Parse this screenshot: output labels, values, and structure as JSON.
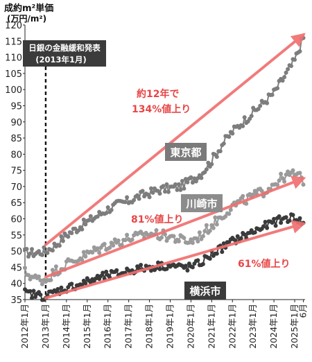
{
  "chart_data": {
    "type": "line",
    "ylabel_line1": "成約m²単価",
    "ylabel_line2": "(万円/m²)",
    "ylim": [
      35,
      120
    ],
    "yticks": [
      35,
      40,
      45,
      50,
      55,
      60,
      65,
      70,
      75,
      80,
      85,
      90,
      95,
      100,
      105,
      110,
      115,
      120
    ],
    "xlim": [
      2012.0,
      2025.5
    ],
    "xticks": [
      {
        "x": 2012,
        "label": "2012年1月"
      },
      {
        "x": 2013,
        "label": "2013年1月"
      },
      {
        "x": 2014,
        "label": "2014年1月"
      },
      {
        "x": 2015,
        "label": "2015年1月"
      },
      {
        "x": 2016,
        "label": "2016年1月"
      },
      {
        "x": 2017,
        "label": "2017年1月"
      },
      {
        "x": 2018,
        "label": "2018年1月"
      },
      {
        "x": 2019,
        "label": "2019年1月"
      },
      {
        "x": 2020,
        "label": "2020年1月"
      },
      {
        "x": 2021,
        "label": "2021年1月"
      },
      {
        "x": 2022,
        "label": "2022年1月"
      },
      {
        "x": 2023,
        "label": "2023年1月"
      },
      {
        "x": 2024,
        "label": "2024年1月"
      },
      {
        "x": 2025,
        "label": "2025年1月"
      },
      {
        "x": 2025.42,
        "label": "6月"
      }
    ],
    "grid": false,
    "series": [
      {
        "name": "東京都",
        "label_box": true,
        "color": "#7d7d7d",
        "points": [
          [
            2012.0,
            49.5
          ],
          [
            2012.5,
            49.5
          ],
          [
            2013.0,
            50.0
          ],
          [
            2013.5,
            52.0
          ],
          [
            2014.0,
            55.0
          ],
          [
            2014.5,
            57.0
          ],
          [
            2015.0,
            59.0
          ],
          [
            2015.5,
            61.0
          ],
          [
            2016.0,
            63.0
          ],
          [
            2016.5,
            64.5
          ],
          [
            2017.0,
            65.5
          ],
          [
            2017.5,
            67.0
          ],
          [
            2018.0,
            68.0
          ],
          [
            2018.5,
            69.0
          ],
          [
            2019.0,
            69.5
          ],
          [
            2019.5,
            70.0
          ],
          [
            2020.0,
            72.0
          ],
          [
            2020.5,
            74.0
          ],
          [
            2021.0,
            78.0
          ],
          [
            2021.5,
            83.0
          ],
          [
            2022.0,
            87.0
          ],
          [
            2022.5,
            90.0
          ],
          [
            2023.0,
            93.0
          ],
          [
            2023.5,
            96.0
          ],
          [
            2024.0,
            99.0
          ],
          [
            2024.5,
            104.0
          ],
          [
            2025.0,
            109.0
          ],
          [
            2025.42,
            116.0
          ]
        ]
      },
      {
        "name": "川崎市",
        "label_box": true,
        "color": "#9a9a9a",
        "points": [
          [
            2012.0,
            43.5
          ],
          [
            2012.5,
            41.5
          ],
          [
            2013.0,
            41.0
          ],
          [
            2013.5,
            44.0
          ],
          [
            2014.0,
            46.0
          ],
          [
            2014.5,
            47.5
          ],
          [
            2015.0,
            49.0
          ],
          [
            2015.5,
            50.5
          ],
          [
            2016.0,
            52.0
          ],
          [
            2016.5,
            53.0
          ],
          [
            2017.0,
            54.0
          ],
          [
            2017.5,
            54.5
          ],
          [
            2018.0,
            55.5
          ],
          [
            2018.5,
            55.0
          ],
          [
            2019.0,
            54.5
          ],
          [
            2019.5,
            53.5
          ],
          [
            2020.0,
            53.0
          ],
          [
            2020.5,
            55.0
          ],
          [
            2021.0,
            58.0
          ],
          [
            2021.5,
            61.0
          ],
          [
            2022.0,
            64.0
          ],
          [
            2022.5,
            65.5
          ],
          [
            2023.0,
            67.0
          ],
          [
            2023.5,
            68.5
          ],
          [
            2024.0,
            71.0
          ],
          [
            2024.5,
            73.0
          ],
          [
            2025.0,
            74.0
          ],
          [
            2025.42,
            72.0
          ]
        ]
      },
      {
        "name": "横浜市",
        "label_box": true,
        "color": "#3a3a3a",
        "points": [
          [
            2012.0,
            37.0
          ],
          [
            2012.5,
            36.5
          ],
          [
            2013.0,
            36.0
          ],
          [
            2013.5,
            37.5
          ],
          [
            2014.0,
            38.5
          ],
          [
            2014.5,
            39.5
          ],
          [
            2015.0,
            40.5
          ],
          [
            2015.5,
            41.5
          ],
          [
            2016.0,
            42.5
          ],
          [
            2016.5,
            43.0
          ],
          [
            2017.0,
            44.0
          ],
          [
            2017.5,
            44.5
          ],
          [
            2018.0,
            45.0
          ],
          [
            2018.5,
            45.5
          ],
          [
            2019.0,
            45.5
          ],
          [
            2019.5,
            45.0
          ],
          [
            2020.0,
            45.0
          ],
          [
            2020.5,
            46.5
          ],
          [
            2021.0,
            49.0
          ],
          [
            2021.5,
            51.0
          ],
          [
            2022.0,
            53.0
          ],
          [
            2022.5,
            54.5
          ],
          [
            2023.0,
            56.0
          ],
          [
            2023.5,
            57.5
          ],
          [
            2024.0,
            59.0
          ],
          [
            2024.5,
            60.0
          ],
          [
            2025.0,
            60.5
          ],
          [
            2025.42,
            58.5
          ]
        ]
      }
    ],
    "arrows": [
      {
        "from": [
          2013.0,
          52.0
        ],
        "to": [
          2025.42,
          117.0
        ],
        "color": "#f07070"
      },
      {
        "from": [
          2013.0,
          42.0
        ],
        "to": [
          2025.42,
          72.5
        ],
        "color": "#f07070"
      },
      {
        "from": [
          2013.0,
          35.5
        ],
        "to": [
          2025.42,
          58.5
        ],
        "color": "#f07070"
      }
    ],
    "annotations": [
      {
        "text": "約12年で",
        "color": "#e84545"
      },
      {
        "text": "134%値上り",
        "color": "#e84545"
      },
      {
        "text": "81%値上り",
        "color": "#e84545"
      },
      {
        "text": "61%値上り",
        "color": "#e84545"
      }
    ],
    "event": {
      "x": 2013.0,
      "line1": "日銀の金融緩和発表",
      "line2": "(2013年1月)"
    }
  }
}
